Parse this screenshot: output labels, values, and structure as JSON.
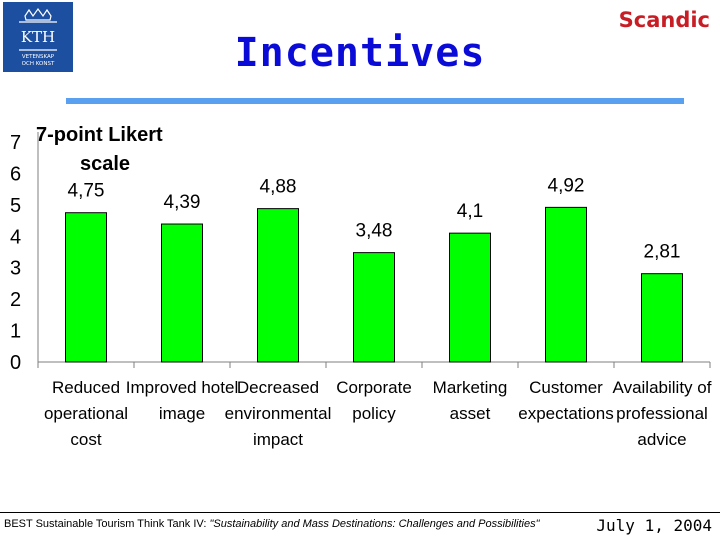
{
  "header": {
    "title": "Incentives",
    "brand": "Scandic",
    "logo_text": "KTH",
    "logo_subtext_1": "VETENSKAP",
    "logo_subtext_2": "OCH KONST"
  },
  "footer": {
    "event": "BEST Sustainable Tourism Think Tank IV: ",
    "event_italic": "\"Sustainability and Mass Destinations: Challenges and Possibilities\"",
    "date": "July 1, 2004"
  },
  "colors": {
    "bar": "#00ff00",
    "title": "#0b0bd8",
    "brand": "#c81d25",
    "accent": "#5aa0f0"
  },
  "chart_data": {
    "type": "bar",
    "title": "7-point Likert scale",
    "title_lines": [
      "7-point Likert",
      "scale"
    ],
    "categories": [
      [
        "Reduced",
        "operational",
        "cost"
      ],
      [
        "Improved hotel",
        "image"
      ],
      [
        "Decreased",
        "environmental",
        "impact"
      ],
      [
        "Corporate",
        "policy"
      ],
      [
        "Marketing",
        "asset"
      ],
      [
        "Customer",
        "expectations"
      ],
      [
        "Availability of",
        "professional",
        "advice"
      ]
    ],
    "values": [
      4.75,
      4.39,
      4.88,
      3.48,
      4.1,
      4.92,
      2.81
    ],
    "value_labels": [
      "4,75",
      "4,39",
      "4,88",
      "3,48",
      "4,1",
      "4,92",
      "2,81"
    ],
    "yticks": [
      "0",
      "1",
      "2",
      "3",
      "4",
      "5",
      "6",
      "7"
    ],
    "ylim": [
      0,
      7
    ],
    "grid": false,
    "legend": "none"
  }
}
